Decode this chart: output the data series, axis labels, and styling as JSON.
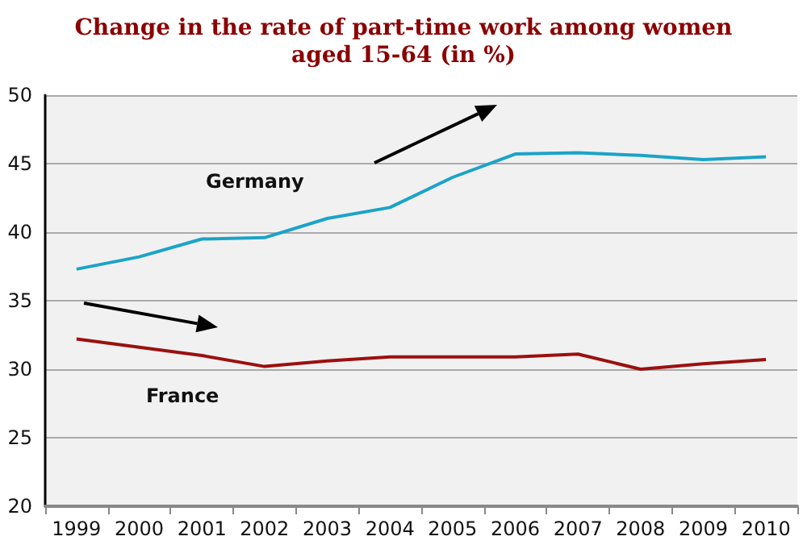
{
  "chart_data": {
    "type": "line",
    "title": "Change in the rate of part-time work among women\naged 15-64 (in %)",
    "categories": [
      "1999",
      "2000",
      "2001",
      "2002",
      "2003",
      "2004",
      "2005",
      "2006",
      "2007",
      "2008",
      "2009",
      "2010"
    ],
    "series": [
      {
        "name": "Germany",
        "color": "#1ba3c9",
        "values": [
          37.3,
          38.2,
          39.5,
          39.6,
          41.0,
          41.8,
          44.0,
          45.7,
          45.8,
          45.6,
          45.3,
          45.5
        ]
      },
      {
        "name": "France",
        "color": "#9b1010",
        "values": [
          32.2,
          31.6,
          31.0,
          30.2,
          30.6,
          30.9,
          30.9,
          30.9,
          31.1,
          30.0,
          30.4,
          30.7
        ]
      }
    ],
    "ylim": [
      20,
      50
    ],
    "yticks": [
      20,
      25,
      30,
      35,
      40,
      45,
      50
    ],
    "grid": "y",
    "legend": false,
    "marker": "none",
    "line_style": "solid"
  }
}
